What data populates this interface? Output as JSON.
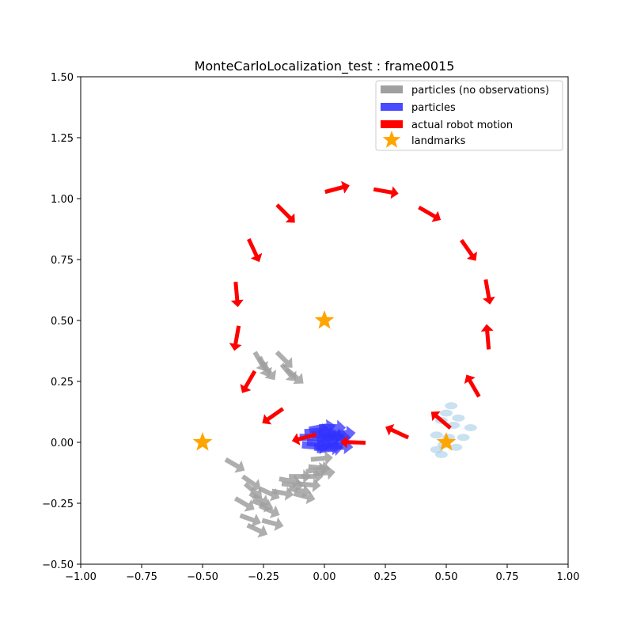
{
  "chart_data": {
    "type": "scatter",
    "title": "MonteCarloLocalization_test : frame0015",
    "xlabel": "",
    "ylabel": "",
    "xlim": [
      -1.0,
      1.0
    ],
    "ylim": [
      -0.5,
      1.5
    ],
    "grid": false,
    "legend_position": "top-right",
    "x_ticks": [
      "−1.00",
      "−0.75",
      "−0.50",
      "−0.25",
      "0.00",
      "0.25",
      "0.50",
      "0.75",
      "1.00"
    ],
    "y_ticks": [
      "−0.50",
      "−0.25",
      "0.00",
      "0.25",
      "0.50",
      "0.75",
      "1.00",
      "1.25",
      "1.50"
    ],
    "x_tick_values": [
      -1.0,
      -0.75,
      -0.5,
      -0.25,
      0.0,
      0.25,
      0.5,
      0.75,
      1.0
    ],
    "y_tick_values": [
      -0.5,
      -0.25,
      0.0,
      0.25,
      0.5,
      0.75,
      1.0,
      1.25,
      1.5
    ],
    "colors": {
      "particles_no_obs": "#a0a0a0",
      "particles": "#3333ff",
      "robot_motion": "#ff0000",
      "landmarks": "#ffa500",
      "uncertainty": "#9ec8e6"
    },
    "series": [
      {
        "name": "particles (no observations)",
        "points": [
          [
            -0.24,
            0.37,
            -60
          ],
          [
            -0.22,
            0.35,
            -65
          ],
          [
            -0.21,
            0.33,
            -55
          ],
          [
            -0.15,
            0.37,
            -45
          ],
          [
            -0.13,
            0.32,
            -50
          ],
          [
            -0.11,
            0.3,
            -40
          ],
          [
            -0.36,
            -0.07,
            -30
          ],
          [
            -0.29,
            -0.14,
            -35
          ],
          [
            -0.28,
            -0.17,
            -40
          ],
          [
            -0.26,
            -0.21,
            -30
          ],
          [
            -0.22,
            -0.19,
            -25
          ],
          [
            -0.25,
            -0.24,
            -20
          ],
          [
            -0.22,
            -0.26,
            -25
          ],
          [
            -0.32,
            -0.23,
            -30
          ],
          [
            -0.3,
            -0.3,
            -20
          ],
          [
            -0.27,
            -0.34,
            -25
          ],
          [
            -0.21,
            -0.32,
            -15
          ],
          [
            -0.17,
            -0.2,
            -10
          ],
          [
            -0.13,
            -0.17,
            -5
          ],
          [
            -0.1,
            -0.19,
            -10
          ],
          [
            -0.08,
            -0.21,
            -15
          ],
          [
            -0.06,
            -0.17,
            -5
          ],
          [
            -0.05,
            -0.14,
            0
          ],
          [
            -0.02,
            -0.1,
            -5
          ],
          [
            -0.01,
            -0.07,
            5
          ],
          [
            -0.03,
            -0.12,
            10
          ],
          [
            0.0,
            -0.13,
            5
          ],
          [
            -0.1,
            -0.14,
            0
          ],
          [
            -0.14,
            -0.15,
            -10
          ]
        ]
      },
      {
        "name": "particles",
        "points": [
          [
            -0.05,
            0.02,
            0
          ],
          [
            -0.03,
            0.04,
            5
          ],
          [
            -0.02,
            0.0,
            -5
          ],
          [
            0.0,
            0.03,
            0
          ],
          [
            0.02,
            0.01,
            10
          ],
          [
            0.03,
            0.04,
            -10
          ],
          [
            0.01,
            -0.02,
            0
          ],
          [
            0.04,
            0.0,
            5
          ],
          [
            -0.04,
            -0.01,
            -5
          ],
          [
            0.05,
            0.02,
            0
          ],
          [
            0.02,
            -0.03,
            5
          ],
          [
            0.06,
            -0.01,
            -5
          ],
          [
            -0.01,
            0.05,
            10
          ],
          [
            0.03,
            0.06,
            0
          ],
          [
            0.07,
            0.03,
            5
          ]
        ]
      },
      {
        "name": "actual robot motion",
        "points": [
          [
            0.05,
            1.04,
            15
          ],
          [
            0.25,
            1.03,
            -10
          ],
          [
            0.43,
            0.94,
            -30
          ],
          [
            0.59,
            0.79,
            -55
          ],
          [
            0.67,
            0.62,
            -80
          ],
          [
            0.67,
            0.43,
            95
          ],
          [
            0.61,
            0.23,
            120
          ],
          [
            0.48,
            0.09,
            140
          ],
          [
            0.3,
            0.04,
            155
          ],
          [
            0.12,
            0.0,
            178
          ],
          [
            -0.08,
            0.02,
            195
          ],
          [
            -0.21,
            0.11,
            215
          ],
          [
            -0.31,
            0.25,
            240
          ],
          [
            -0.36,
            0.43,
            260
          ],
          [
            -0.36,
            0.61,
            275
          ],
          [
            -0.29,
            0.79,
            295
          ],
          [
            -0.16,
            0.94,
            315
          ],
          [
            0.05,
            1.04,
            15
          ]
        ]
      },
      {
        "name": "landmarks",
        "points": [
          [
            0.0,
            0.5
          ],
          [
            -0.5,
            0.0
          ],
          [
            0.5,
            0.0
          ]
        ]
      }
    ],
    "uncertainty_ellipses": [
      [
        0.52,
        0.15
      ],
      [
        0.5,
        0.12
      ],
      [
        0.55,
        0.1
      ],
      [
        0.48,
        0.09
      ],
      [
        0.53,
        0.07
      ],
      [
        0.6,
        0.06
      ],
      [
        0.46,
        0.03
      ],
      [
        0.51,
        0.02
      ],
      [
        0.57,
        0.02
      ],
      [
        0.49,
        -0.01
      ],
      [
        0.54,
        -0.02
      ],
      [
        0.46,
        -0.03
      ],
      [
        0.48,
        -0.05
      ]
    ]
  }
}
